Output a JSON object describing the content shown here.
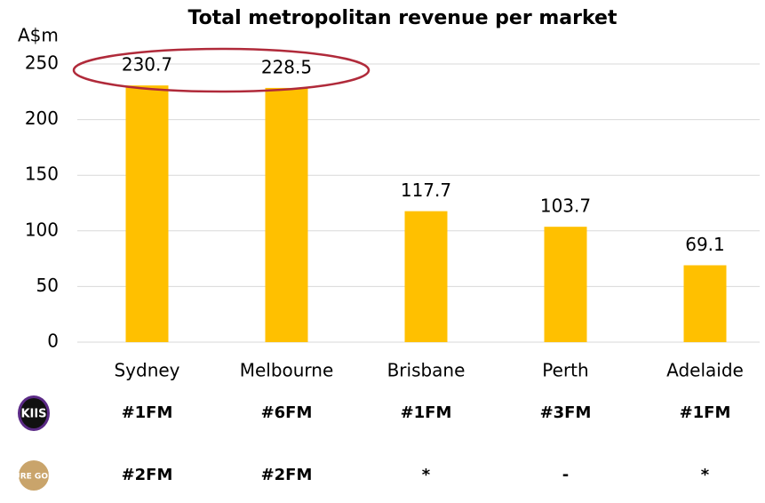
{
  "chart_data": {
    "type": "bar",
    "title": "Total metropolitan revenue per market",
    "y_label": "A$m",
    "categories": [
      "Sydney",
      "Melbourne",
      "Brisbane",
      "Perth",
      "Adelaide"
    ],
    "values": [
      230.7,
      228.5,
      117.7,
      103.7,
      69.1
    ],
    "color": "#ffc000",
    "ylim": [
      0,
      250
    ],
    "yticks": [
      0,
      50,
      100,
      150,
      200,
      250
    ],
    "grid": true
  },
  "rankings": {
    "rows": [
      {
        "brand": "KIIS",
        "values": [
          "#1FM",
          "#6FM",
          "#1FM",
          "#3FM",
          "#1FM"
        ]
      },
      {
        "brand": "PURE GOLD",
        "values": [
          "#2FM",
          "#2FM",
          "*",
          "-",
          "*"
        ]
      }
    ]
  }
}
